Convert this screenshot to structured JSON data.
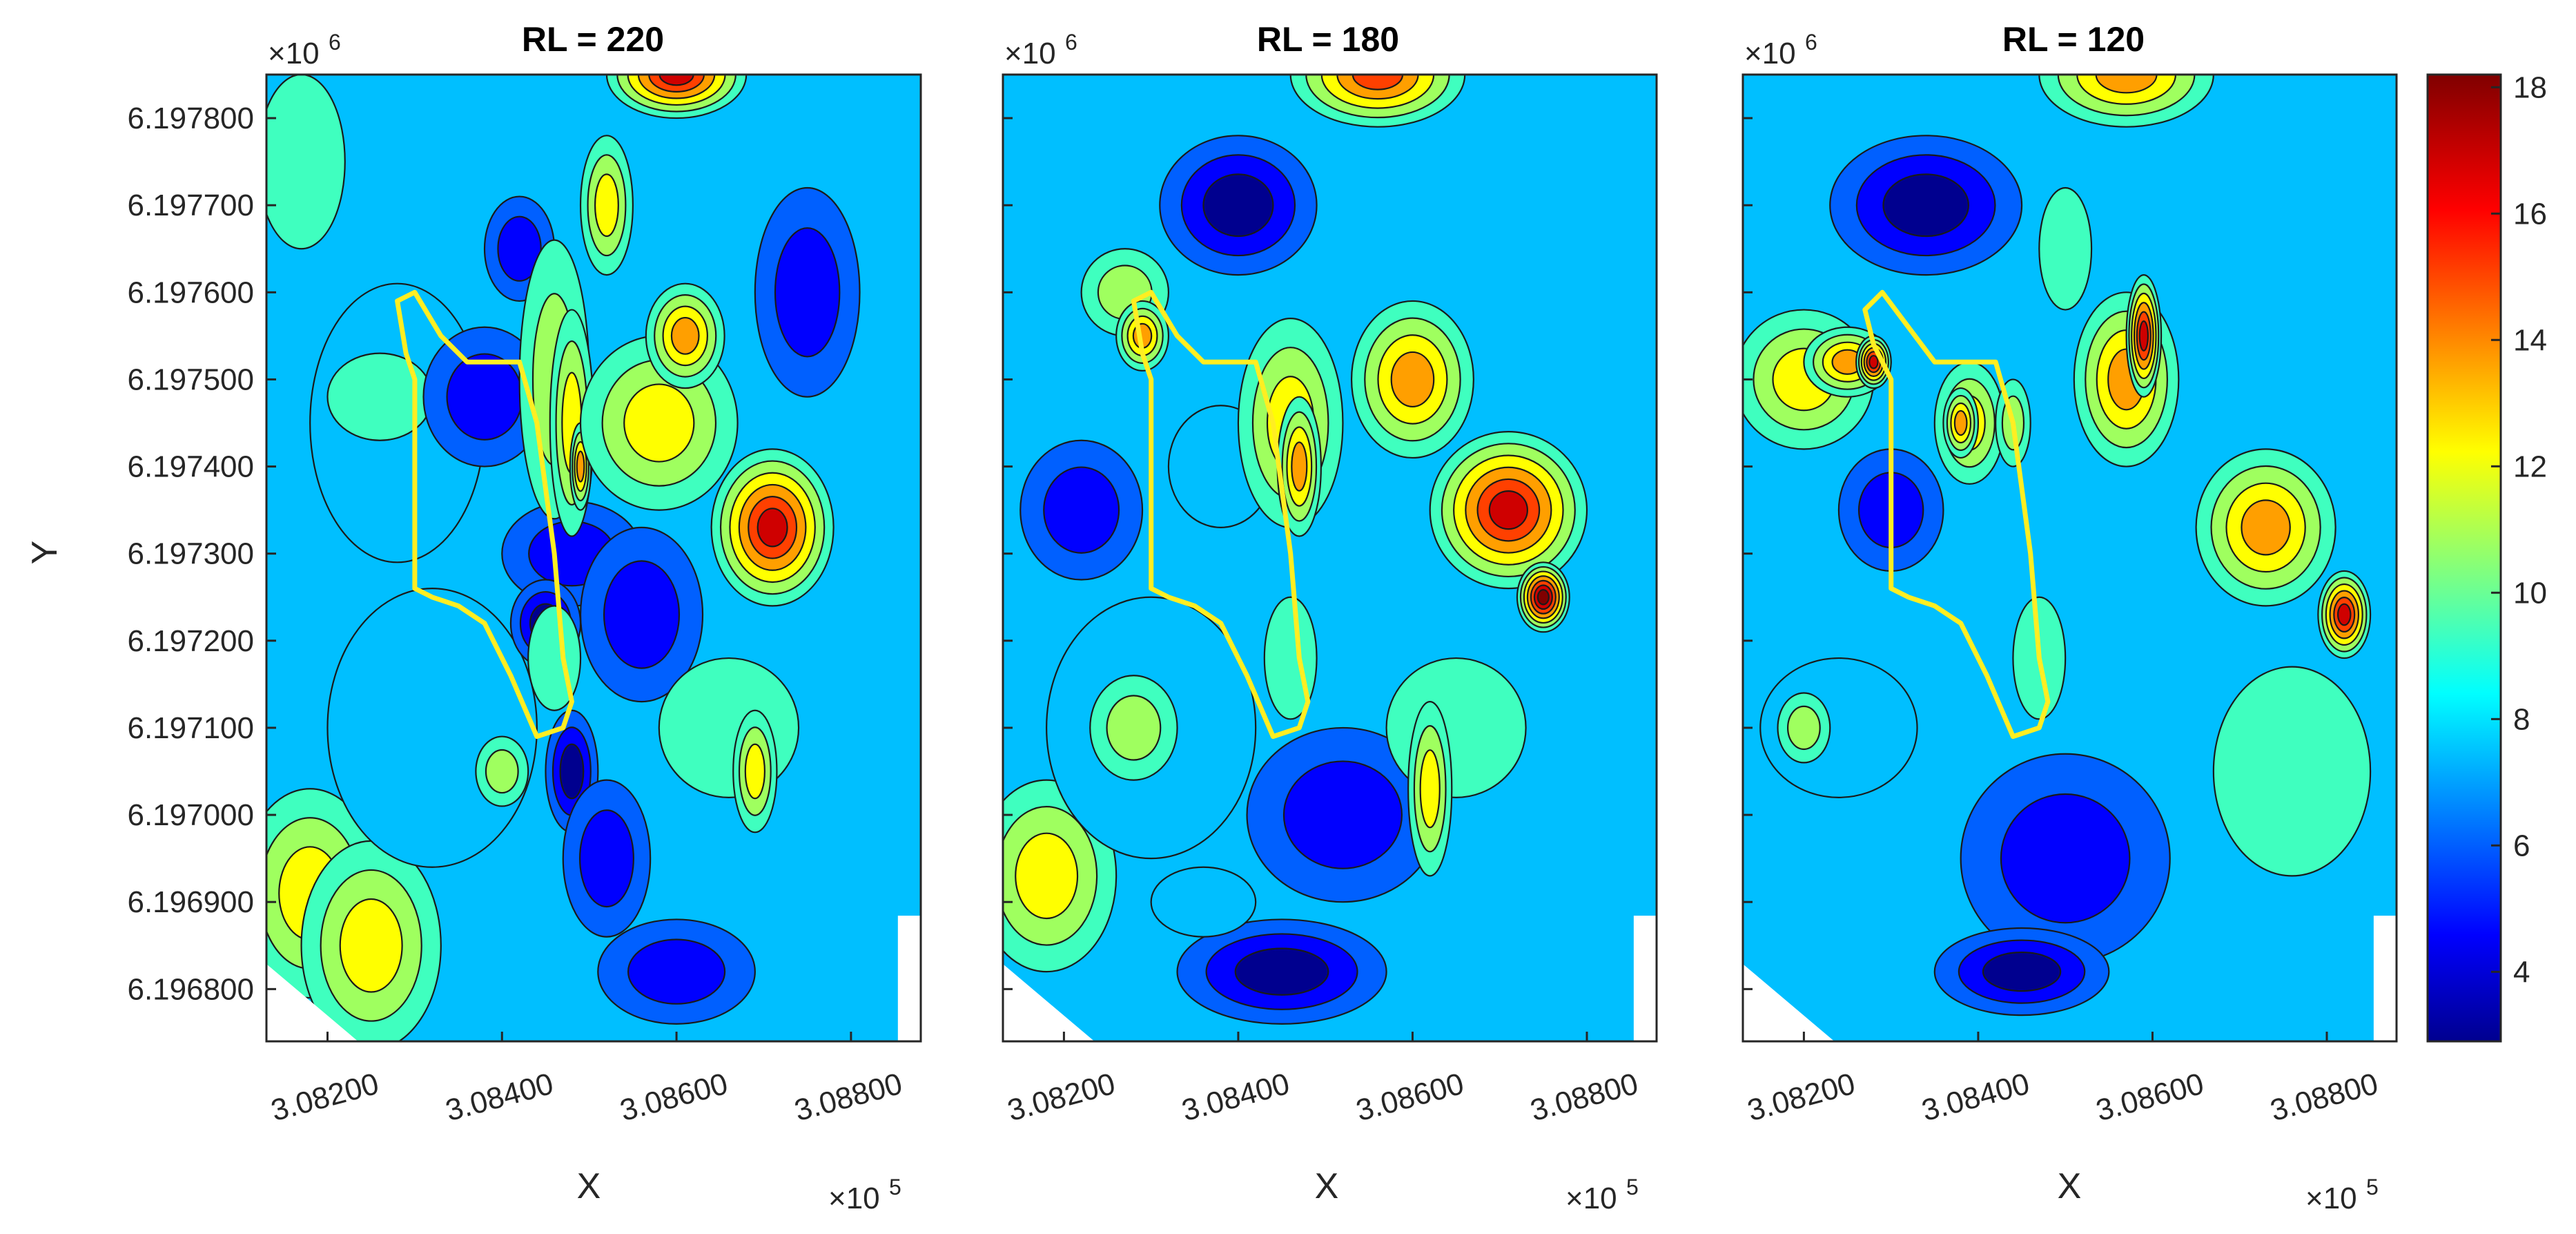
{
  "figure": {
    "colormap": [
      "#00008f",
      "#0000ff",
      "#0060ff",
      "#00bfff",
      "#3fffbf",
      "#9fff5f",
      "#ffff00",
      "#ff9f00",
      "#ff4000",
      "#cf0000",
      "#800000"
    ],
    "boundary_color": "#ffee22"
  },
  "chart_data": [
    {
      "type": "heatmap",
      "subtype": "filled-contour",
      "title": "RL = 220",
      "xlabel": "X",
      "ylabel": "Y",
      "x_ticks": [
        "3.08200",
        "3.08400",
        "3.08600",
        "3.08800"
      ],
      "x_tick_values": [
        3.082,
        3.084,
        3.086,
        3.088
      ],
      "x_exponent": "×10",
      "x_exponent_power": "5",
      "y_ticks": [
        "6.196800",
        "6.196900",
        "6.197000",
        "6.197100",
        "6.197200",
        "6.197300",
        "6.197400",
        "6.197500",
        "6.197600",
        "6.197700",
        "6.197800"
      ],
      "y_tick_values": [
        6.1968,
        6.1969,
        6.197,
        6.1971,
        6.1972,
        6.1973,
        6.1974,
        6.1975,
        6.1976,
        6.1977,
        6.1978
      ],
      "y_exponent": "×10",
      "y_exponent_power": "6",
      "xlim": [
        3.0813,
        3.0888
      ],
      "ylim": [
        6.19674,
        6.19785
      ],
      "boundary_outline": [
        [
          3.0828,
          6.19759
        ],
        [
          3.083,
          6.1976
        ],
        [
          3.0833,
          6.19755
        ],
        [
          3.0836,
          6.19752
        ],
        [
          3.0839,
          6.19752
        ],
        [
          3.0842,
          6.19752
        ],
        [
          3.0844,
          6.19745
        ],
        [
          3.0846,
          6.1973
        ],
        [
          3.0847,
          6.19718
        ],
        [
          3.0848,
          6.19713
        ],
        [
          3.0847,
          6.1971
        ],
        [
          3.0844,
          6.19709
        ],
        [
          3.0841,
          6.19716
        ],
        [
          3.0838,
          6.19722
        ],
        [
          3.0835,
          6.19724
        ],
        [
          3.0832,
          6.19725
        ],
        [
          3.083,
          6.19726
        ],
        [
          3.083,
          6.1974
        ],
        [
          3.083,
          6.1975
        ],
        [
          3.0829,
          6.19753
        ],
        [
          3.0828,
          6.19759
        ]
      ],
      "blobs": [
        {
          "x": 3.0818,
          "y": 6.19691,
          "rx": 0.0008,
          "ry": 0.00012,
          "v": 12.5
        },
        {
          "x": 3.0825,
          "y": 6.19685,
          "rx": 0.0008,
          "ry": 0.00012,
          "v": 12.5
        },
        {
          "x": 3.0832,
          "y": 6.1971,
          "rx": 0.0012,
          "ry": 0.00016,
          "v": 7.6
        },
        {
          "x": 3.0828,
          "y": 6.19745,
          "rx": 0.001,
          "ry": 0.00016,
          "v": 8.1
        },
        {
          "x": 3.0817,
          "y": 6.19775,
          "rx": 0.0005,
          "ry": 0.0001,
          "v": 9.7
        },
        {
          "x": 3.0826,
          "y": 6.19748,
          "rx": 0.0006,
          "ry": 5e-05,
          "v": 9.7
        },
        {
          "x": 3.0838,
          "y": 6.19748,
          "rx": 0.0007,
          "ry": 8e-05,
          "v": 4.6
        },
        {
          "x": 3.0842,
          "y": 6.19765,
          "rx": 0.0004,
          "ry": 6e-05,
          "v": 5.2
        },
        {
          "x": 3.0848,
          "y": 6.1973,
          "rx": 0.0008,
          "ry": 6e-05,
          "v": 4.6
        },
        {
          "x": 3.0845,
          "y": 6.19722,
          "rx": 0.0004,
          "ry": 5e-05,
          "v": 3.4
        },
        {
          "x": 3.0846,
          "y": 6.1975,
          "rx": 0.0004,
          "ry": 0.00016,
          "v": 10.5
        },
        {
          "x": 3.0848,
          "y": 6.19745,
          "rx": 0.00025,
          "ry": 0.00013,
          "v": 12.0
        },
        {
          "x": 3.0849,
          "y": 6.1974,
          "rx": 0.00012,
          "ry": 5e-05,
          "v": 13.5
        },
        {
          "x": 3.0846,
          "y": 6.19718,
          "rx": 0.0003,
          "ry": 6e-05,
          "v": 9.6
        },
        {
          "x": 3.0852,
          "y": 6.1977,
          "rx": 0.0003,
          "ry": 8e-05,
          "v": 12.0
        },
        {
          "x": 3.0858,
          "y": 6.19745,
          "rx": 0.0009,
          "ry": 0.0001,
          "v": 11.3
        },
        {
          "x": 3.0861,
          "y": 6.19755,
          "rx": 0.00045,
          "ry": 6e-05,
          "v": 14.0
        },
        {
          "x": 3.0871,
          "y": 6.19733,
          "rx": 0.0007,
          "ry": 9e-05,
          "v": 16.0
        },
        {
          "x": 3.0856,
          "y": 6.19723,
          "rx": 0.0007,
          "ry": 0.0001,
          "v": 5.5
        },
        {
          "x": 3.0848,
          "y": 6.19705,
          "rx": 0.0003,
          "ry": 7e-05,
          "v": 3.2
        },
        {
          "x": 3.0852,
          "y": 6.19695,
          "rx": 0.0005,
          "ry": 9e-05,
          "v": 4.4
        },
        {
          "x": 3.0866,
          "y": 6.1971,
          "rx": 0.0008,
          "ry": 8e-05,
          "v": 9.8
        },
        {
          "x": 3.0869,
          "y": 6.19705,
          "rx": 0.00025,
          "ry": 7e-05,
          "v": 11.8
        },
        {
          "x": 3.086,
          "y": 6.19785,
          "rx": 0.0008,
          "ry": 5e-05,
          "v": 16.0
        },
        {
          "x": 3.084,
          "y": 6.19705,
          "rx": 0.0003,
          "ry": 4e-05,
          "v": 10.0
        },
        {
          "x": 3.086,
          "y": 6.19682,
          "rx": 0.0009,
          "ry": 6e-05,
          "v": 5.0
        },
        {
          "x": 3.0875,
          "y": 6.1976,
          "rx": 0.0006,
          "ry": 0.00012,
          "v": 5.6
        }
      ]
    },
    {
      "type": "heatmap",
      "subtype": "filled-contour",
      "title": "RL = 180",
      "xlabel": "X",
      "ylabel": "",
      "x_ticks": [
        "3.08200",
        "3.08400",
        "3.08600",
        "3.08800"
      ],
      "x_tick_values": [
        3.082,
        3.084,
        3.086,
        3.088
      ],
      "x_exponent": "×10",
      "x_exponent_power": "5",
      "y_exponent": "×10",
      "y_exponent_power": "6",
      "xlim": [
        3.0813,
        3.0888
      ],
      "ylim": [
        6.19674,
        6.19785
      ],
      "boundary_outline": [
        [
          3.0828,
          6.19759
        ],
        [
          3.083,
          6.1976
        ],
        [
          3.0833,
          6.19755
        ],
        [
          3.0836,
          6.19752
        ],
        [
          3.0839,
          6.19752
        ],
        [
          3.0842,
          6.19752
        ],
        [
          3.0844,
          6.19745
        ],
        [
          3.0846,
          6.1973
        ],
        [
          3.0847,
          6.19718
        ],
        [
          3.0848,
          6.19713
        ],
        [
          3.0847,
          6.1971
        ],
        [
          3.0844,
          6.19709
        ],
        [
          3.0841,
          6.19716
        ],
        [
          3.0838,
          6.19722
        ],
        [
          3.0835,
          6.19724
        ],
        [
          3.0832,
          6.19725
        ],
        [
          3.083,
          6.19726
        ],
        [
          3.083,
          6.1974
        ],
        [
          3.083,
          6.1975
        ],
        [
          3.0829,
          6.19753
        ],
        [
          3.0828,
          6.19759
        ]
      ],
      "blobs": [
        {
          "x": 3.0818,
          "y": 6.19693,
          "rx": 0.0008,
          "ry": 0.00011,
          "v": 12.5
        },
        {
          "x": 3.083,
          "y": 6.1971,
          "rx": 0.0012,
          "ry": 0.00015,
          "v": 7.8
        },
        {
          "x": 3.0822,
          "y": 6.19735,
          "rx": 0.0007,
          "ry": 8e-05,
          "v": 5.5
        },
        {
          "x": 3.0838,
          "y": 6.1974,
          "rx": 0.0006,
          "ry": 7e-05,
          "v": 7.5
        },
        {
          "x": 3.0827,
          "y": 6.1976,
          "rx": 0.0005,
          "ry": 5e-05,
          "v": 10.5
        },
        {
          "x": 3.0829,
          "y": 6.19755,
          "rx": 0.0003,
          "ry": 4e-05,
          "v": 13.2
        },
        {
          "x": 3.0846,
          "y": 6.19745,
          "rx": 0.0006,
          "ry": 0.00012,
          "v": 11.5
        },
        {
          "x": 3.0847,
          "y": 6.1974,
          "rx": 0.00025,
          "ry": 8e-05,
          "v": 13.5
        },
        {
          "x": 3.084,
          "y": 6.1977,
          "rx": 0.0009,
          "ry": 8e-05,
          "v": 3.6
        },
        {
          "x": 3.086,
          "y": 6.1975,
          "rx": 0.0007,
          "ry": 9e-05,
          "v": 14.0
        },
        {
          "x": 3.0871,
          "y": 6.19735,
          "rx": 0.0009,
          "ry": 9e-05,
          "v": 16.0
        },
        {
          "x": 3.0875,
          "y": 6.19725,
          "rx": 0.0003,
          "ry": 4e-05,
          "v": 17.8
        },
        {
          "x": 3.0856,
          "y": 6.19785,
          "rx": 0.001,
          "ry": 6e-05,
          "v": 15.0
        },
        {
          "x": 3.0846,
          "y": 6.19718,
          "rx": 0.0003,
          "ry": 7e-05,
          "v": 9.6
        },
        {
          "x": 3.0852,
          "y": 6.197,
          "rx": 0.0011,
          "ry": 0.0001,
          "v": 4.6
        },
        {
          "x": 3.0865,
          "y": 6.1971,
          "rx": 0.0008,
          "ry": 8e-05,
          "v": 9.8
        },
        {
          "x": 3.0862,
          "y": 6.19703,
          "rx": 0.00025,
          "ry": 0.0001,
          "v": 12.0
        },
        {
          "x": 3.0845,
          "y": 6.19682,
          "rx": 0.0012,
          "ry": 6e-05,
          "v": 3.8
        },
        {
          "x": 3.0836,
          "y": 6.1969,
          "rx": 0.0006,
          "ry": 4e-05,
          "v": 8.4
        },
        {
          "x": 3.0828,
          "y": 6.1971,
          "rx": 0.0005,
          "ry": 6e-05,
          "v": 10.0
        }
      ]
    },
    {
      "type": "heatmap",
      "subtype": "filled-contour",
      "title": "RL = 120",
      "xlabel": "X",
      "ylabel": "",
      "x_ticks": [
        "3.08200",
        "3.08400",
        "3.08600",
        "3.08800"
      ],
      "x_tick_values": [
        3.082,
        3.084,
        3.086,
        3.088
      ],
      "x_exponent": "×10",
      "x_exponent_power": "5",
      "y_exponent": "×10",
      "y_exponent_power": "6",
      "xlim": [
        3.0813,
        3.0888
      ],
      "ylim": [
        6.19674,
        6.19785
      ],
      "boundary_outline": [
        [
          3.0827,
          6.19758
        ],
        [
          3.0829,
          6.1976
        ],
        [
          3.0832,
          6.19756
        ],
        [
          3.0835,
          6.19752
        ],
        [
          3.0838,
          6.19752
        ],
        [
          3.0842,
          6.19752
        ],
        [
          3.0844,
          6.19745
        ],
        [
          3.0846,
          6.1973
        ],
        [
          3.0847,
          6.19718
        ],
        [
          3.0848,
          6.19713
        ],
        [
          3.0847,
          6.1971
        ],
        [
          3.0844,
          6.19709
        ],
        [
          3.0841,
          6.19716
        ],
        [
          3.0838,
          6.19722
        ],
        [
          3.0835,
          6.19724
        ],
        [
          3.0832,
          6.19725
        ],
        [
          3.083,
          6.19726
        ],
        [
          3.083,
          6.1974
        ],
        [
          3.083,
          6.1975
        ],
        [
          3.0828,
          6.19754
        ],
        [
          3.0827,
          6.19758
        ]
      ],
      "blobs": [
        {
          "x": 3.082,
          "y": 6.1975,
          "rx": 0.0008,
          "ry": 8e-05,
          "v": 12.5
        },
        {
          "x": 3.0825,
          "y": 6.19752,
          "rx": 0.0005,
          "ry": 4e-05,
          "v": 14.0
        },
        {
          "x": 3.0828,
          "y": 6.19752,
          "rx": 0.0002,
          "ry": 3e-05,
          "v": 16.5
        },
        {
          "x": 3.0839,
          "y": 6.19745,
          "rx": 0.0004,
          "ry": 7e-05,
          "v": 12.5
        },
        {
          "x": 3.0838,
          "y": 6.19745,
          "rx": 0.0002,
          "ry": 4e-05,
          "v": 14.0
        },
        {
          "x": 3.0844,
          "y": 6.19745,
          "rx": 0.0002,
          "ry": 5e-05,
          "v": 10.5
        },
        {
          "x": 3.0834,
          "y": 6.1977,
          "rx": 0.0011,
          "ry": 8e-05,
          "v": 4.0
        },
        {
          "x": 3.085,
          "y": 6.19765,
          "rx": 0.0003,
          "ry": 7e-05,
          "v": 8.5
        },
        {
          "x": 3.0857,
          "y": 6.1975,
          "rx": 0.0006,
          "ry": 0.0001,
          "v": 14.0
        },
        {
          "x": 3.0859,
          "y": 6.19755,
          "rx": 0.0002,
          "ry": 7e-05,
          "v": 16.2
        },
        {
          "x": 3.0873,
          "y": 6.19733,
          "rx": 0.0008,
          "ry": 9e-05,
          "v": 14.0
        },
        {
          "x": 3.0882,
          "y": 6.19723,
          "rx": 0.0003,
          "ry": 5e-05,
          "v": 16.0
        },
        {
          "x": 3.0857,
          "y": 6.19785,
          "rx": 0.001,
          "ry": 6e-05,
          "v": 14.0
        },
        {
          "x": 3.0847,
          "y": 6.19718,
          "rx": 0.0003,
          "ry": 7e-05,
          "v": 9.6
        },
        {
          "x": 3.0824,
          "y": 6.1971,
          "rx": 0.0009,
          "ry": 8e-05,
          "v": 8.1
        },
        {
          "x": 3.082,
          "y": 6.1971,
          "rx": 0.0003,
          "ry": 4e-05,
          "v": 10.0
        },
        {
          "x": 3.0876,
          "y": 6.19705,
          "rx": 0.0009,
          "ry": 0.00012,
          "v": 9.8
        },
        {
          "x": 3.085,
          "y": 6.19695,
          "rx": 0.0012,
          "ry": 0.00012,
          "v": 4.4
        },
        {
          "x": 3.0845,
          "y": 6.19682,
          "rx": 0.001,
          "ry": 5e-05,
          "v": 3.8
        },
        {
          "x": 3.083,
          "y": 6.19735,
          "rx": 0.0006,
          "ry": 7e-05,
          "v": 4.6
        }
      ]
    }
  ],
  "colorbar": {
    "ticks": [
      "4",
      "6",
      "8",
      "10",
      "12",
      "14",
      "16",
      "18"
    ],
    "tick_values": [
      4,
      6,
      8,
      10,
      12,
      14,
      16,
      18
    ],
    "min": 2.9,
    "max": 18.2,
    "colormap_name": "jet"
  }
}
